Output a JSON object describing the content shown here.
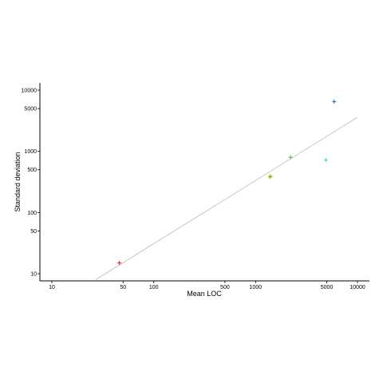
{
  "chart_data": {
    "type": "scatter",
    "title": "",
    "xlabel": "Mean LOC",
    "ylabel": "Standard deviation",
    "x_scale": "log",
    "y_scale": "log",
    "xlim": [
      8,
      13000
    ],
    "ylim": [
      8,
      13000
    ],
    "x_ticks": [
      10,
      50,
      100,
      500,
      1000,
      5000,
      10000
    ],
    "x_tick_labels": [
      "10",
      "50",
      "100",
      "500",
      "1000",
      "5000",
      "10000"
    ],
    "y_ticks": [
      10,
      50,
      100,
      500,
      1000,
      5000,
      10000
    ],
    "y_tick_labels": [
      "10",
      "50",
      "100",
      "500",
      "1000",
      "5000",
      "10000"
    ],
    "grid": false,
    "legend": "none",
    "marker": "+",
    "points": [
      {
        "x": 46,
        "y": 15,
        "color": "#e41a1c"
      },
      {
        "x": 1380,
        "y": 380,
        "color": "#b8b800"
      },
      {
        "x": 1400,
        "y": 390,
        "color": "#7fbf00"
      },
      {
        "x": 2200,
        "y": 800,
        "color": "#33cc33"
      },
      {
        "x": 4900,
        "y": 720,
        "color": "#33dddd"
      },
      {
        "x": 5900,
        "y": 6500,
        "color": "#1f55cc"
      }
    ],
    "fit_line": {
      "points": [
        [
          27,
          8
        ],
        [
          10000,
          3600
        ]
      ],
      "color": "#bbbbbb"
    }
  }
}
